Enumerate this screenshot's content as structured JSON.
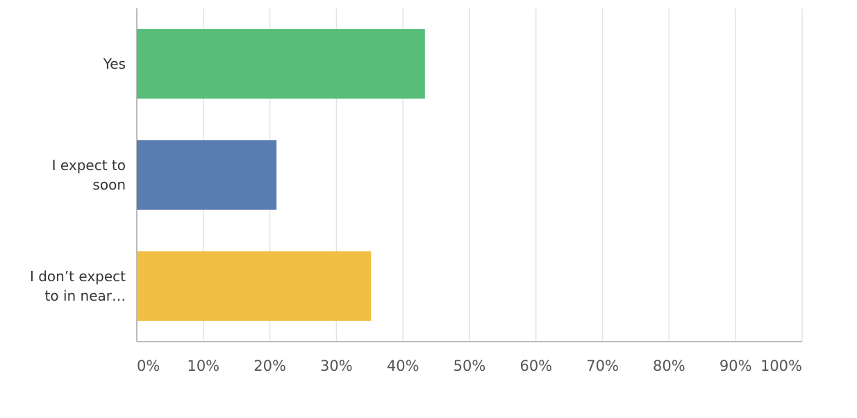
{
  "chart_data": {
    "type": "bar",
    "orientation": "horizontal",
    "categories": [
      "Yes",
      "I expect to soon",
      "I don’t expect to in near…"
    ],
    "values": [
      43.3,
      21.0,
      35.2
    ],
    "colors": [
      "#57bd78",
      "#5a7db1",
      "#f0bf43"
    ],
    "xlim": [
      0,
      100
    ],
    "xticks": [
      {
        "value": 0,
        "label": "0%"
      },
      {
        "value": 10,
        "label": "10%"
      },
      {
        "value": 20,
        "label": "20%"
      },
      {
        "value": 30,
        "label": "30%"
      },
      {
        "value": 40,
        "label": "40%"
      },
      {
        "value": 50,
        "label": "50%"
      },
      {
        "value": 60,
        "label": "60%"
      },
      {
        "value": 70,
        "label": "70%"
      },
      {
        "value": 80,
        "label": "80%"
      },
      {
        "value": 90,
        "label": "90%"
      },
      {
        "value": 100,
        "label": "100%"
      }
    ],
    "grid": true
  }
}
